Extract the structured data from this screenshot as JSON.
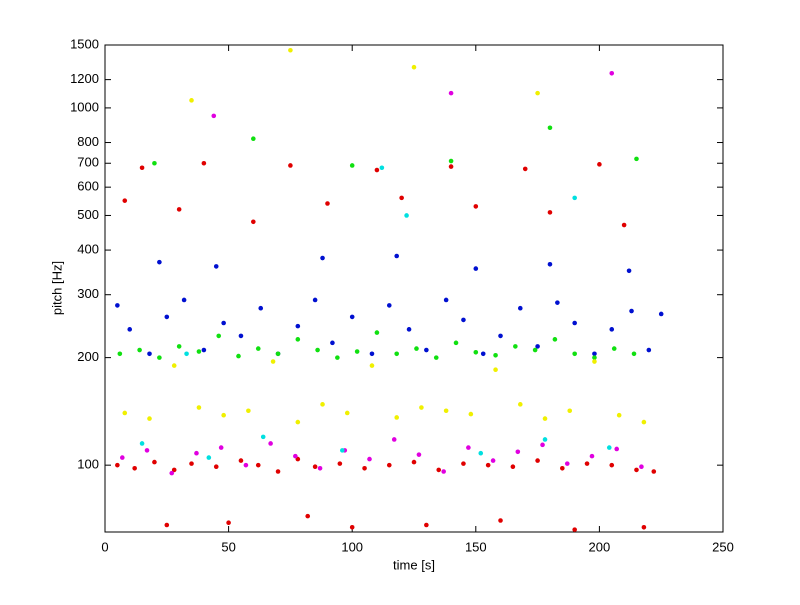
{
  "chart_data": {
    "type": "scatter",
    "xlabel": "time [s]",
    "ylabel": "pitch [Hz]",
    "log_y": true,
    "grid": false,
    "xlim": [
      0,
      250
    ],
    "xticks": [
      0,
      50,
      100,
      150,
      200,
      250
    ],
    "ylim": [
      65,
      1500
    ],
    "yticks": [
      100,
      200,
      300,
      400,
      500,
      600,
      700,
      800,
      1000,
      1200,
      1500
    ],
    "series": [
      {
        "color": "#e00000",
        "x": [
          5,
          12,
          20,
          28,
          35,
          45,
          55,
          62,
          70,
          78,
          85,
          95,
          105,
          115,
          125,
          135,
          145,
          155,
          165,
          175,
          185,
          195,
          205,
          215,
          222,
          8,
          30,
          60,
          90,
          120,
          150,
          180,
          210,
          15,
          40,
          75,
          110,
          140,
          170,
          200,
          25,
          50,
          82,
          100,
          130,
          160,
          190,
          218
        ],
        "values": [
          100,
          98,
          102,
          97,
          101,
          99,
          103,
          100,
          96,
          104,
          99,
          101,
          98,
          100,
          102,
          97,
          101,
          100,
          99,
          103,
          98,
          101,
          100,
          97,
          96,
          550,
          520,
          480,
          540,
          560,
          530,
          510,
          470,
          680,
          700,
          690,
          670,
          685,
          675,
          695,
          68,
          69,
          72,
          67,
          68,
          70,
          66,
          67
        ]
      },
      {
        "color": "#0010d0",
        "x": [
          5,
          10,
          18,
          25,
          32,
          40,
          48,
          55,
          63,
          70,
          78,
          85,
          92,
          100,
          108,
          115,
          123,
          130,
          138,
          145,
          153,
          160,
          168,
          175,
          183,
          190,
          198,
          205,
          213,
          220,
          225,
          22,
          45,
          88,
          118,
          150,
          180,
          212
        ],
        "values": [
          280,
          240,
          205,
          260,
          290,
          210,
          250,
          230,
          275,
          205,
          245,
          290,
          220,
          260,
          205,
          280,
          240,
          210,
          290,
          255,
          205,
          230,
          275,
          215,
          285,
          250,
          205,
          240,
          270,
          210,
          265,
          370,
          360,
          380,
          385,
          355,
          365,
          350
        ]
      },
      {
        "color": "#10e010",
        "x": [
          6,
          14,
          22,
          30,
          38,
          46,
          54,
          62,
          70,
          78,
          86,
          94,
          102,
          110,
          118,
          126,
          134,
          142,
          150,
          158,
          166,
          174,
          182,
          190,
          198,
          206,
          214,
          20,
          60,
          100,
          140,
          180,
          215
        ],
        "values": [
          205,
          210,
          200,
          215,
          208,
          230,
          202,
          212,
          205,
          225,
          210,
          200,
          208,
          235,
          205,
          212,
          200,
          220,
          207,
          203,
          215,
          210,
          225,
          205,
          200,
          212,
          205,
          700,
          820,
          690,
          710,
          880,
          720
        ]
      },
      {
        "color": "#f0f000",
        "x": [
          8,
          18,
          28,
          38,
          48,
          58,
          68,
          78,
          88,
          98,
          108,
          118,
          128,
          138,
          148,
          158,
          168,
          178,
          188,
          198,
          208,
          218,
          35,
          75,
          125,
          175
        ],
        "values": [
          140,
          135,
          190,
          145,
          138,
          142,
          195,
          132,
          148,
          140,
          190,
          136,
          145,
          142,
          139,
          185,
          148,
          135,
          142,
          195,
          138,
          132,
          1050,
          1450,
          1300,
          1100
        ]
      },
      {
        "color": "#e000e0",
        "x": [
          7,
          17,
          27,
          37,
          47,
          57,
          67,
          77,
          87,
          97,
          107,
          117,
          127,
          137,
          147,
          157,
          167,
          177,
          187,
          197,
          207,
          217,
          44,
          140,
          205
        ],
        "values": [
          105,
          110,
          95,
          108,
          112,
          100,
          115,
          106,
          98,
          110,
          104,
          118,
          107,
          96,
          112,
          103,
          109,
          114,
          101,
          106,
          111,
          99,
          950,
          1100,
          1250
        ]
      },
      {
        "color": "#00e0e0",
        "x": [
          15,
          42,
          64,
          96,
          122,
          152,
          178,
          204,
          33,
          112,
          190
        ],
        "values": [
          115,
          105,
          120,
          110,
          500,
          108,
          118,
          112,
          205,
          680,
          560
        ]
      }
    ]
  }
}
